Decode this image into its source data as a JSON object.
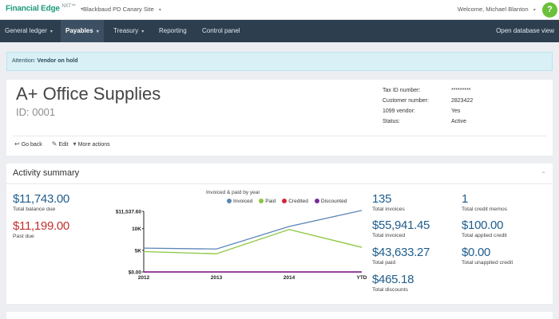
{
  "topbar": {
    "brand": "Financial Edge",
    "brand_suffix": "NXT™",
    "site": "Blackbaud PD Canary Site",
    "welcome": "Welcome, Michael Blanton",
    "help_icon": "?"
  },
  "nav": {
    "items": [
      {
        "label": "General ledger",
        "has_caret": true
      },
      {
        "label": "Payables",
        "has_caret": true,
        "active": true
      },
      {
        "label": "Treasury",
        "has_caret": true
      },
      {
        "label": "Reporting",
        "has_caret": false
      },
      {
        "label": "Control panel",
        "has_caret": false
      }
    ],
    "open_view": "Open database view"
  },
  "alert": {
    "prefix": "Attention:",
    "message": "Vendor on hold"
  },
  "vendor": {
    "name": "A+ Office Supplies",
    "id": "ID: 0001",
    "facts": [
      {
        "label": "Tax ID number:",
        "value": "*********"
      },
      {
        "label": "Customer number:",
        "value": "2823422"
      },
      {
        "label": "1099 vendor:",
        "value": "Yes"
      },
      {
        "label": "Status:",
        "value": "Active"
      }
    ],
    "actions": {
      "go_back": "Go back",
      "edit": "Edit",
      "more": "More actions"
    }
  },
  "activity": {
    "title": "Activity summary",
    "total_balance": {
      "value": "$11,743.00",
      "label": "Total balance due"
    },
    "past_due": {
      "value": "$11,199.00",
      "label": "Past due"
    },
    "total_invoices": {
      "value": "135",
      "label": "Total invoices"
    },
    "total_invoiced": {
      "value": "$55,941.45",
      "label": "Total invoiced"
    },
    "total_paid": {
      "value": "$43,633.27",
      "label": "Total paid"
    },
    "total_discounts": {
      "value": "$465.18",
      "label": "Total discounts"
    },
    "total_credit_memos": {
      "value": "1",
      "label": "Total credit memos"
    },
    "total_applied_credit": {
      "value": "$100.00",
      "label": "Total applied credit"
    },
    "total_unapplied_credit": {
      "value": "$0.00",
      "label": "Total unapplied credit"
    }
  },
  "colors": {
    "invoiced": "#5b86b6",
    "paid": "#8dc63f",
    "credited": "#d8233c",
    "discounted": "#7b2a9c"
  },
  "chart_data": {
    "type": "line",
    "title": "Invoiced & paid by year",
    "categories": [
      "2012",
      "2013",
      "2014",
      "YTD"
    ],
    "series": [
      {
        "name": "Invoiced",
        "values": [
          5500,
          5300,
          10500,
          14200
        ]
      },
      {
        "name": "Paid",
        "values": [
          4700,
          4200,
          9800,
          5700
        ]
      },
      {
        "name": "Credited",
        "values": [
          0,
          0,
          0,
          0
        ]
      },
      {
        "name": "Discounted",
        "values": [
          0,
          0,
          0,
          0
        ]
      }
    ],
    "y_ticks": [
      "$0.00",
      "5K",
      "10K",
      "$11,537.60"
    ],
    "ylim": [
      0,
      14000
    ],
    "legend": "top"
  }
}
